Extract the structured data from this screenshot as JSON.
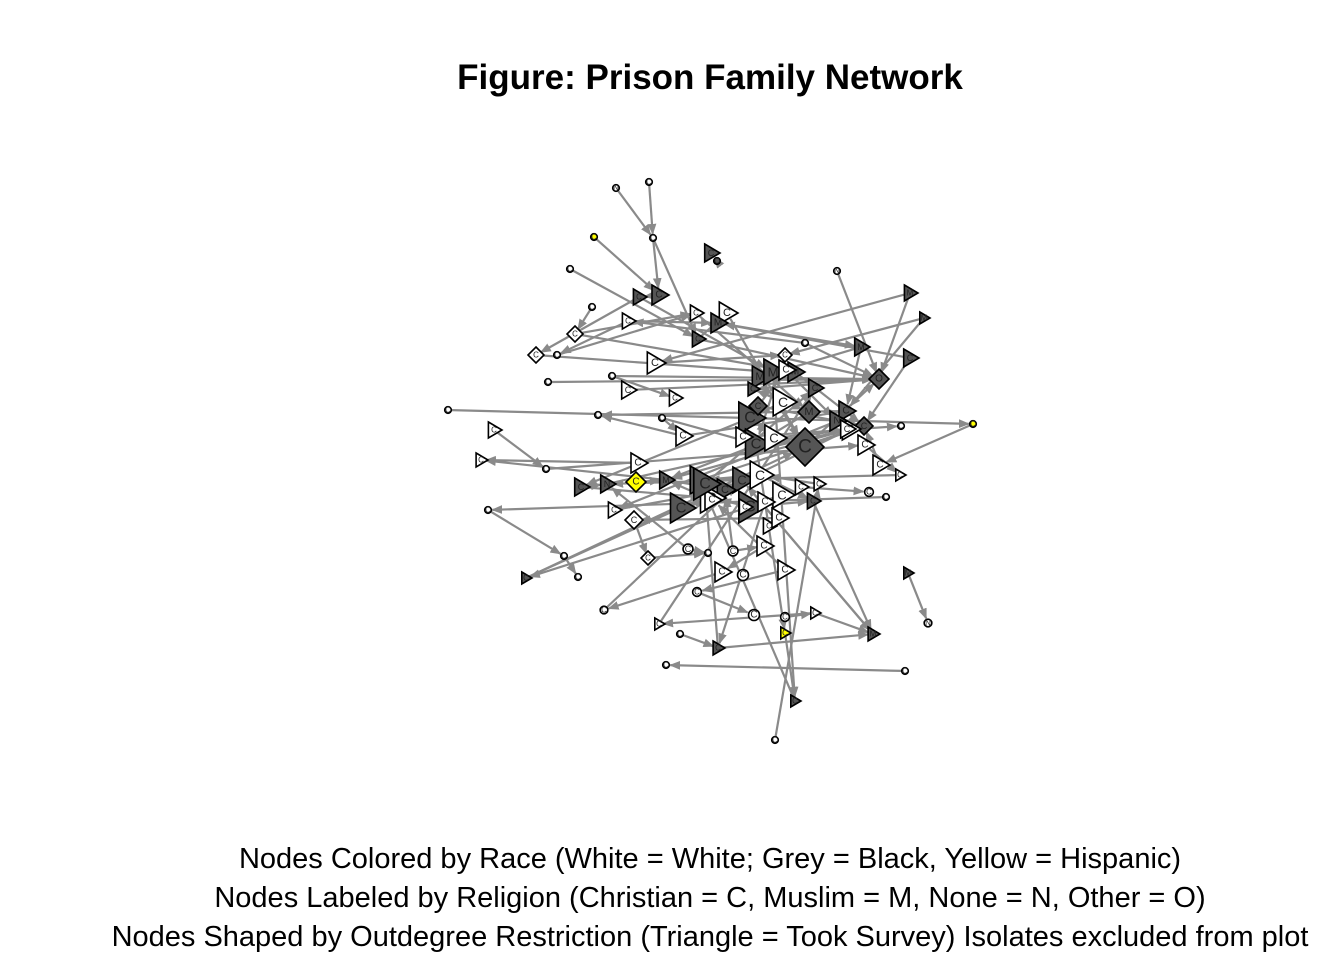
{
  "title": "Figure: Prison Family Network",
  "captions": [
    "Nodes Colored by Race (White = White; Grey = Black, Yellow = Hispanic)",
    "Nodes Labeled by Religion (Christian = C, Muslim = M, None = N, Other = O)",
    "Nodes Shaped by Outdegree Restriction (Triangle = Took Survey) Isolates excluded from plot"
  ],
  "colors": {
    "white": "#ffffff",
    "grey": "#555555",
    "yellow": "#ffff00",
    "edge": "#8a8a8a"
  },
  "network": {
    "nodes": [
      {
        "id": 0,
        "shape": "circle",
        "race": "white",
        "label": "N"
      },
      {
        "id": 1,
        "shape": "circle",
        "race": "white",
        "label": "C"
      },
      {
        "id": 2,
        "shape": "circle",
        "race": "yellow",
        "label": "C"
      },
      {
        "id": 3,
        "shape": "circle",
        "race": "white",
        "label": "C"
      },
      {
        "id": 4,
        "shape": "triangle",
        "race": "grey",
        "label": "C"
      },
      {
        "id": 5,
        "shape": "circle",
        "race": "grey",
        "label": "C"
      },
      {
        "id": 6,
        "shape": "circle",
        "race": "white",
        "label": "C"
      },
      {
        "id": 7,
        "shape": "circle",
        "race": "white",
        "label": "N"
      },
      {
        "id": 8,
        "shape": "circle",
        "race": "white",
        "label": "C"
      },
      {
        "id": 9,
        "shape": "triangle",
        "race": "grey",
        "label": "C"
      },
      {
        "id": 10,
        "shape": "triangle",
        "race": "grey",
        "label": "C"
      },
      {
        "id": 11,
        "shape": "triangle",
        "race": "white",
        "label": "C"
      },
      {
        "id": 12,
        "shape": "triangle",
        "race": "white",
        "label": "C"
      },
      {
        "id": 13,
        "shape": "triangle",
        "race": "grey",
        "label": "M"
      },
      {
        "id": 14,
        "shape": "triangle",
        "race": "white",
        "label": "C"
      },
      {
        "id": 15,
        "shape": "diamond",
        "race": "white",
        "label": "C"
      },
      {
        "id": 16,
        "shape": "triangle",
        "race": "grey",
        "label": "C"
      },
      {
        "id": 17,
        "shape": "triangle",
        "race": "grey",
        "label": "M"
      },
      {
        "id": 18,
        "shape": "diamond",
        "race": "white",
        "label": "C"
      },
      {
        "id": 19,
        "shape": "circle",
        "race": "white",
        "label": "C"
      },
      {
        "id": 20,
        "shape": "triangle",
        "race": "grey",
        "label": "C"
      },
      {
        "id": 21,
        "shape": "circle",
        "race": "white",
        "label": "C"
      },
      {
        "id": 22,
        "shape": "triangle",
        "race": "white",
        "label": "C"
      },
      {
        "id": 23,
        "shape": "diamond",
        "race": "white",
        "label": "C"
      },
      {
        "id": 24,
        "shape": "triangle",
        "race": "grey",
        "label": "M"
      },
      {
        "id": 25,
        "shape": "triangle",
        "race": "grey",
        "label": "M"
      },
      {
        "id": 26,
        "shape": "triangle",
        "race": "grey",
        "label": "M"
      },
      {
        "id": 27,
        "shape": "circle",
        "race": "white",
        "label": "C"
      },
      {
        "id": 28,
        "shape": "triangle",
        "race": "white",
        "label": "C"
      },
      {
        "id": 29,
        "shape": "diamond",
        "race": "grey",
        "label": "O"
      },
      {
        "id": 30,
        "shape": "triangle",
        "race": "grey",
        "label": "M"
      },
      {
        "id": 31,
        "shape": "triangle",
        "race": "grey",
        "label": "M"
      },
      {
        "id": 32,
        "shape": "triangle",
        "race": "grey",
        "label": "C"
      },
      {
        "id": 33,
        "shape": "circle",
        "race": "white",
        "label": "C"
      },
      {
        "id": 34,
        "shape": "triangle",
        "race": "white",
        "label": "C"
      },
      {
        "id": 35,
        "shape": "triangle",
        "race": "white",
        "label": "C"
      },
      {
        "id": 36,
        "shape": "triangle",
        "race": "grey",
        "label": "C"
      },
      {
        "id": 37,
        "shape": "diamond",
        "race": "grey",
        "label": "M"
      },
      {
        "id": 38,
        "shape": "triangle",
        "race": "grey",
        "label": "C"
      },
      {
        "id": 39,
        "shape": "triangle",
        "race": "grey",
        "label": "C"
      },
      {
        "id": 40,
        "shape": "circle",
        "race": "white",
        "label": "C"
      },
      {
        "id": 41,
        "shape": "circle",
        "race": "white",
        "label": "C"
      },
      {
        "id": 42,
        "shape": "triangle",
        "race": "white",
        "label": "C"
      },
      {
        "id": 43,
        "shape": "diamond",
        "race": "grey",
        "label": "C"
      },
      {
        "id": 44,
        "shape": "diamond",
        "race": "grey",
        "label": "C"
      },
      {
        "id": 45,
        "shape": "triangle",
        "race": "white",
        "label": "C"
      },
      {
        "id": 46,
        "shape": "triangle",
        "race": "white",
        "label": "C"
      },
      {
        "id": 47,
        "shape": "triangle",
        "race": "white",
        "label": "C"
      },
      {
        "id": 48,
        "shape": "circle",
        "race": "white",
        "label": "C"
      },
      {
        "id": 49,
        "shape": "circle",
        "race": "white",
        "label": "C"
      },
      {
        "id": 50,
        "shape": "circle",
        "race": "yellow",
        "label": "C"
      },
      {
        "id": 51,
        "shape": "triangle",
        "race": "white",
        "label": "C"
      },
      {
        "id": 52,
        "shape": "triangle",
        "race": "white",
        "label": "C"
      },
      {
        "id": 53,
        "shape": "circle",
        "race": "white",
        "label": "C"
      },
      {
        "id": 54,
        "shape": "triangle",
        "race": "white",
        "label": "C"
      },
      {
        "id": 55,
        "shape": "triangle",
        "race": "white",
        "label": "C"
      },
      {
        "id": 56,
        "shape": "triangle",
        "race": "white",
        "label": "C"
      },
      {
        "id": 57,
        "shape": "triangle",
        "race": "white",
        "label": "C"
      },
      {
        "id": 58,
        "shape": "diamond",
        "race": "yellow",
        "label": "C"
      },
      {
        "id": 59,
        "shape": "triangle",
        "race": "grey",
        "label": "M"
      },
      {
        "id": 60,
        "shape": "triangle",
        "race": "grey",
        "label": "C"
      },
      {
        "id": 61,
        "shape": "triangle",
        "race": "grey",
        "label": "N"
      },
      {
        "id": 62,
        "shape": "triangle",
        "race": "grey",
        "label": "N"
      },
      {
        "id": 63,
        "shape": "triangle",
        "race": "grey",
        "label": "C"
      },
      {
        "id": 64,
        "shape": "triangle",
        "race": "white",
        "label": "C"
      },
      {
        "id": 65,
        "shape": "triangle",
        "race": "white",
        "label": "C"
      },
      {
        "id": 66,
        "shape": "triangle",
        "race": "grey",
        "label": "C"
      },
      {
        "id": 67,
        "shape": "triangle",
        "race": "grey",
        "label": "C"
      },
      {
        "id": 68,
        "shape": "triangle",
        "race": "white",
        "label": "C"
      },
      {
        "id": 69,
        "shape": "triangle",
        "race": "grey",
        "label": "C"
      },
      {
        "id": 70,
        "shape": "triangle",
        "race": "white",
        "label": "C"
      },
      {
        "id": 71,
        "shape": "triangle",
        "race": "white",
        "label": "C"
      },
      {
        "id": 72,
        "shape": "circle",
        "race": "white",
        "label": "C"
      },
      {
        "id": 73,
        "shape": "circle",
        "race": "white",
        "label": "C"
      },
      {
        "id": 74,
        "shape": "circle",
        "race": "white",
        "label": "C"
      },
      {
        "id": 75,
        "shape": "circle",
        "race": "white",
        "label": "C"
      },
      {
        "id": 76,
        "shape": "circle",
        "race": "white",
        "label": "C"
      },
      {
        "id": 77,
        "shape": "triangle",
        "race": "grey",
        "label": "C"
      },
      {
        "id": 78,
        "shape": "triangle",
        "race": "white",
        "label": "C"
      },
      {
        "id": 79,
        "shape": "triangle",
        "race": "white",
        "label": "C"
      },
      {
        "id": 80,
        "shape": "triangle",
        "race": "white",
        "label": "C"
      },
      {
        "id": 81,
        "shape": "triangle",
        "race": "grey",
        "label": "C"
      },
      {
        "id": 82,
        "shape": "triangle",
        "race": "white",
        "label": "C"
      },
      {
        "id": 83,
        "shape": "triangle",
        "race": "white",
        "label": "C"
      },
      {
        "id": 84,
        "shape": "diamond",
        "race": "white",
        "label": "C"
      },
      {
        "id": 85,
        "shape": "diamond",
        "race": "white",
        "label": "C"
      },
      {
        "id": 86,
        "shape": "circle",
        "race": "white",
        "label": "C"
      },
      {
        "id": 87,
        "shape": "circle",
        "race": "white",
        "label": "C"
      },
      {
        "id": 88,
        "shape": "circle",
        "race": "white",
        "label": "C"
      },
      {
        "id": 89,
        "shape": "triangle",
        "race": "white",
        "label": "C"
      },
      {
        "id": 90,
        "shape": "triangle",
        "race": "white",
        "label": "C"
      },
      {
        "id": 91,
        "shape": "circle",
        "race": "white",
        "label": "C"
      },
      {
        "id": 92,
        "shape": "triangle",
        "race": "white",
        "label": "C"
      },
      {
        "id": 93,
        "shape": "circle",
        "race": "white",
        "label": "C"
      },
      {
        "id": 94,
        "shape": "circle",
        "race": "white",
        "label": "C"
      },
      {
        "id": 95,
        "shape": "circle",
        "race": "white",
        "label": "C"
      },
      {
        "id": 96,
        "shape": "circle",
        "race": "white",
        "label": "C"
      },
      {
        "id": 97,
        "shape": "triangle",
        "race": "white",
        "label": "C"
      },
      {
        "id": 98,
        "shape": "triangle",
        "race": "white",
        "label": "C"
      },
      {
        "id": 99,
        "shape": "circle",
        "race": "white",
        "label": "C"
      },
      {
        "id": 100,
        "shape": "triangle",
        "race": "grey",
        "label": "C"
      },
      {
        "id": 101,
        "shape": "triangle",
        "race": "grey",
        "label": "M"
      },
      {
        "id": 102,
        "shape": "triangle",
        "race": "grey",
        "label": "M"
      },
      {
        "id": 103,
        "shape": "circle",
        "race": "white",
        "label": "N"
      },
      {
        "id": 104,
        "shape": "circle",
        "race": "white",
        "label": "C"
      },
      {
        "id": 105,
        "shape": "circle",
        "race": "white",
        "label": "C"
      },
      {
        "id": 106,
        "shape": "triangle",
        "race": "yellow",
        "label": "C"
      },
      {
        "id": 107,
        "shape": "triangle",
        "race": "grey",
        "label": "C"
      },
      {
        "id": 108,
        "shape": "circle",
        "race": "white",
        "label": "C"
      },
      {
        "id": 109,
        "shape": "triangle",
        "race": "white",
        "label": "C"
      },
      {
        "id": 110,
        "shape": "triangle",
        "race": "grey",
        "label": "C"
      },
      {
        "id": 111,
        "shape": "triangle",
        "race": "grey",
        "label": "C"
      },
      {
        "id": 112,
        "shape": "diamond",
        "race": "grey",
        "label": "C"
      },
      {
        "id": 113,
        "shape": "triangle",
        "race": "white",
        "label": "C"
      },
      {
        "id": 114,
        "shape": "triangle",
        "race": "grey",
        "label": "N"
      },
      {
        "id": 115,
        "shape": "triangle",
        "race": "white",
        "label": "C"
      },
      {
        "id": 116,
        "shape": "circle",
        "race": "white",
        "label": "C"
      },
      {
        "id": 117,
        "shape": "triangle",
        "race": "white",
        "label": "C"
      }
    ],
    "edges": [
      [
        1,
        6
      ],
      [
        0,
        6
      ],
      [
        6,
        16
      ],
      [
        3,
        16
      ],
      [
        2,
        9
      ],
      [
        8,
        14
      ],
      [
        14,
        21
      ],
      [
        14,
        13
      ],
      [
        16,
        11
      ],
      [
        9,
        10
      ],
      [
        10,
        18
      ],
      [
        17,
        22
      ],
      [
        19,
        15
      ],
      [
        15,
        12
      ],
      [
        21,
        12
      ],
      [
        22,
        23
      ],
      [
        20,
        13
      ],
      [
        25,
        23
      ],
      [
        24,
        26
      ],
      [
        27,
        29
      ],
      [
        28,
        29
      ],
      [
        30,
        31
      ],
      [
        29,
        32
      ],
      [
        33,
        34
      ],
      [
        35,
        32
      ],
      [
        36,
        45
      ],
      [
        37,
        38
      ],
      [
        39,
        40
      ],
      [
        41,
        42
      ],
      [
        42,
        40
      ],
      [
        43,
        44
      ],
      [
        45,
        47
      ],
      [
        46,
        48
      ],
      [
        49,
        50
      ],
      [
        50,
        55
      ],
      [
        51,
        53
      ],
      [
        53,
        52
      ],
      [
        52,
        57
      ],
      [
        56,
        54
      ],
      [
        58,
        59
      ],
      [
        59,
        54
      ],
      [
        60,
        61
      ],
      [
        62,
        64
      ],
      [
        63,
        61
      ],
      [
        65,
        66
      ],
      [
        67,
        68
      ],
      [
        69,
        70
      ],
      [
        71,
        72
      ],
      [
        73,
        74
      ],
      [
        74,
        75
      ],
      [
        75,
        76
      ],
      [
        78,
        79
      ],
      [
        80,
        77
      ],
      [
        79,
        81
      ],
      [
        82,
        83
      ],
      [
        83,
        84
      ],
      [
        84,
        85
      ],
      [
        85,
        87
      ],
      [
        86,
        87
      ],
      [
        88,
        89
      ],
      [
        89,
        90
      ],
      [
        90,
        93
      ],
      [
        92,
        94
      ],
      [
        94,
        95
      ],
      [
        96,
        97
      ],
      [
        97,
        98
      ],
      [
        99,
        100
      ],
      [
        100,
        101
      ],
      [
        102,
        103
      ],
      [
        104,
        105
      ],
      [
        106,
        107
      ],
      [
        108,
        109
      ],
      [
        110,
        111
      ],
      [
        112,
        113
      ],
      [
        113,
        114
      ],
      [
        115,
        116
      ],
      [
        116,
        117
      ],
      [
        5,
        4
      ],
      [
        7,
        29
      ],
      [
        8,
        29
      ],
      [
        12,
        37
      ],
      [
        18,
        30
      ],
      [
        23,
        38
      ],
      [
        26,
        43
      ],
      [
        31,
        44
      ],
      [
        11,
        43
      ],
      [
        17,
        29
      ],
      [
        25,
        39
      ],
      [
        24,
        39
      ],
      [
        45,
        43
      ],
      [
        47,
        59
      ],
      [
        55,
        44
      ],
      [
        57,
        62
      ],
      [
        61,
        44
      ],
      [
        66,
        63
      ],
      [
        68,
        63
      ],
      [
        70,
        59
      ],
      [
        77,
        63
      ],
      [
        81,
        101
      ],
      [
        80,
        100
      ],
      [
        97,
        101
      ],
      [
        98,
        111
      ],
      [
        93,
        63
      ],
      [
        88,
        66
      ],
      [
        86,
        61
      ],
      [
        92,
        68
      ],
      [
        100,
        110
      ],
      [
        107,
        62
      ],
      [
        109,
        64
      ],
      [
        114,
        65
      ],
      [
        117,
        68
      ],
      [
        6,
        9
      ],
      [
        13,
        24
      ],
      [
        35,
        36
      ],
      [
        36,
        60
      ],
      [
        42,
        39
      ],
      [
        33,
        29
      ],
      [
        41,
        38
      ],
      [
        15,
        31
      ],
      [
        20,
        44
      ],
      [
        10,
        30
      ],
      [
        30,
        107
      ],
      [
        62,
        44
      ],
      [
        63,
        101
      ],
      [
        59,
        66
      ],
      [
        60,
        68
      ],
      [
        64,
        81
      ],
      [
        38,
        44
      ],
      [
        43,
        29
      ],
      [
        112,
        44
      ],
      [
        16,
        29
      ],
      [
        45,
        59
      ],
      [
        32,
        37
      ],
      [
        38,
        106
      ],
      [
        101,
        63
      ],
      [
        77,
        43
      ],
      [
        47,
        66
      ]
    ]
  }
}
